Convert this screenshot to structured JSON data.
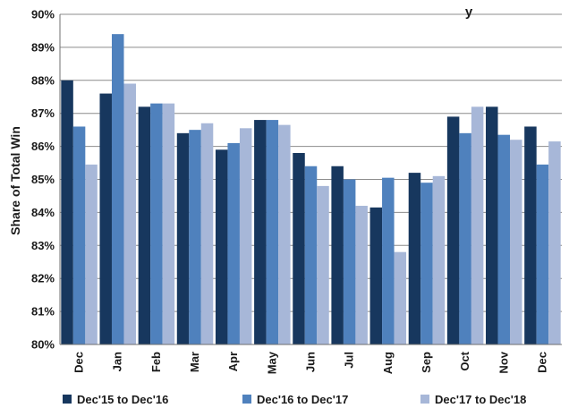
{
  "chart_data": {
    "type": "bar",
    "title_fragment": "y",
    "ylabel": "Share of Total Win",
    "xlabel": "",
    "ylim": [
      80,
      90
    ],
    "ytick_step": 1,
    "ytick_suffix": "%",
    "grid": "horizontal",
    "legend_position": "bottom",
    "categories": [
      "Dec",
      "Jan",
      "Feb",
      "Mar",
      "Apr",
      "May",
      "Jun",
      "Jul",
      "Aug",
      "Sep",
      "Oct",
      "Nov",
      "Dec"
    ],
    "series": [
      {
        "name": "Dec'15 to Dec'16",
        "color": "#17375e",
        "values": [
          88.0,
          87.6,
          87.2,
          86.4,
          85.9,
          86.8,
          85.8,
          85.4,
          84.15,
          85.2,
          86.9,
          87.2,
          86.6
        ]
      },
      {
        "name": "Dec'16 to Dec'17",
        "color": "#4f81bd",
        "values": [
          86.6,
          89.4,
          87.3,
          86.5,
          86.1,
          86.8,
          85.4,
          85.0,
          85.05,
          84.9,
          86.4,
          86.35,
          85.45
        ]
      },
      {
        "name": "Dec'17 to Dec'18",
        "color": "#a7b7d8",
        "values": [
          85.45,
          87.9,
          87.3,
          86.7,
          86.55,
          86.65,
          84.8,
          84.2,
          82.8,
          85.1,
          87.2,
          86.2,
          86.15
        ]
      }
    ]
  }
}
